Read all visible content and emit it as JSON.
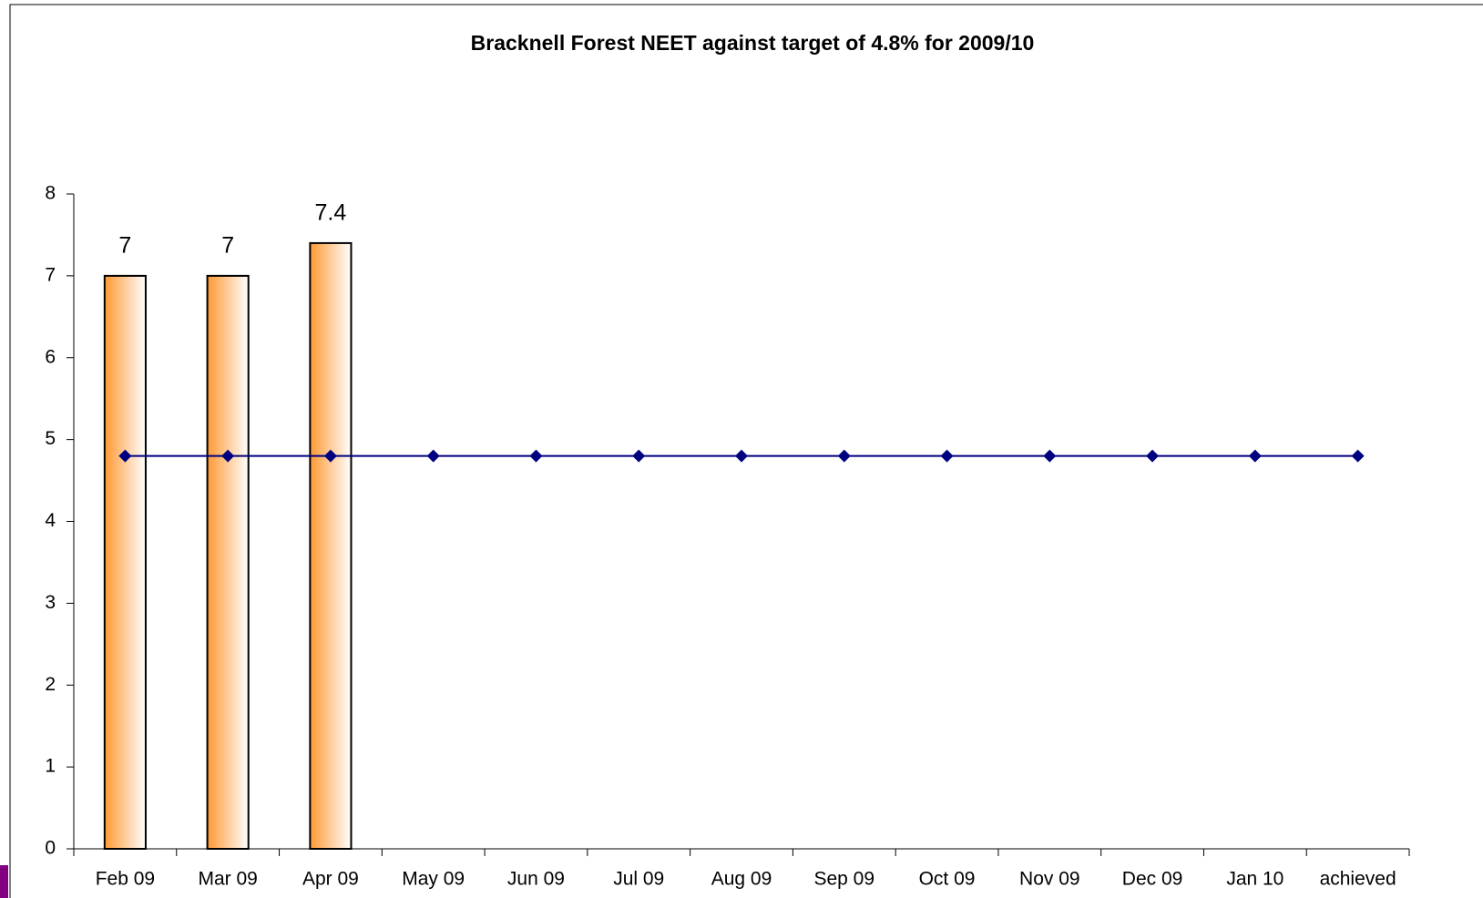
{
  "chart_data": {
    "type": "bar",
    "title": "Bracknell Forest NEET against target  of 4.8% for 2009/10",
    "categories": [
      "Feb 09",
      "Mar 09",
      "Apr 09",
      "May 09",
      "Jun 09",
      "Jul 09",
      "Aug 09",
      "Sep 09",
      "Oct 09",
      "Nov 09",
      "Dec 09",
      "Jan 10",
      "achieved"
    ],
    "series": [
      {
        "type": "bar",
        "color": "#ff9933",
        "values": [
          7,
          7,
          7.4,
          null,
          null,
          null,
          null,
          null,
          null,
          null,
          null,
          null,
          null
        ]
      },
      {
        "type": "line",
        "color": "#000080",
        "values": [
          4.8,
          4.8,
          4.8,
          4.8,
          4.8,
          4.8,
          4.8,
          4.8,
          4.8,
          4.8,
          4.8,
          4.8,
          4.8
        ]
      }
    ],
    "ylim": [
      0,
      8
    ],
    "yticks": [
      0,
      1,
      2,
      3,
      4,
      5,
      6,
      7,
      8
    ],
    "grid": false
  }
}
